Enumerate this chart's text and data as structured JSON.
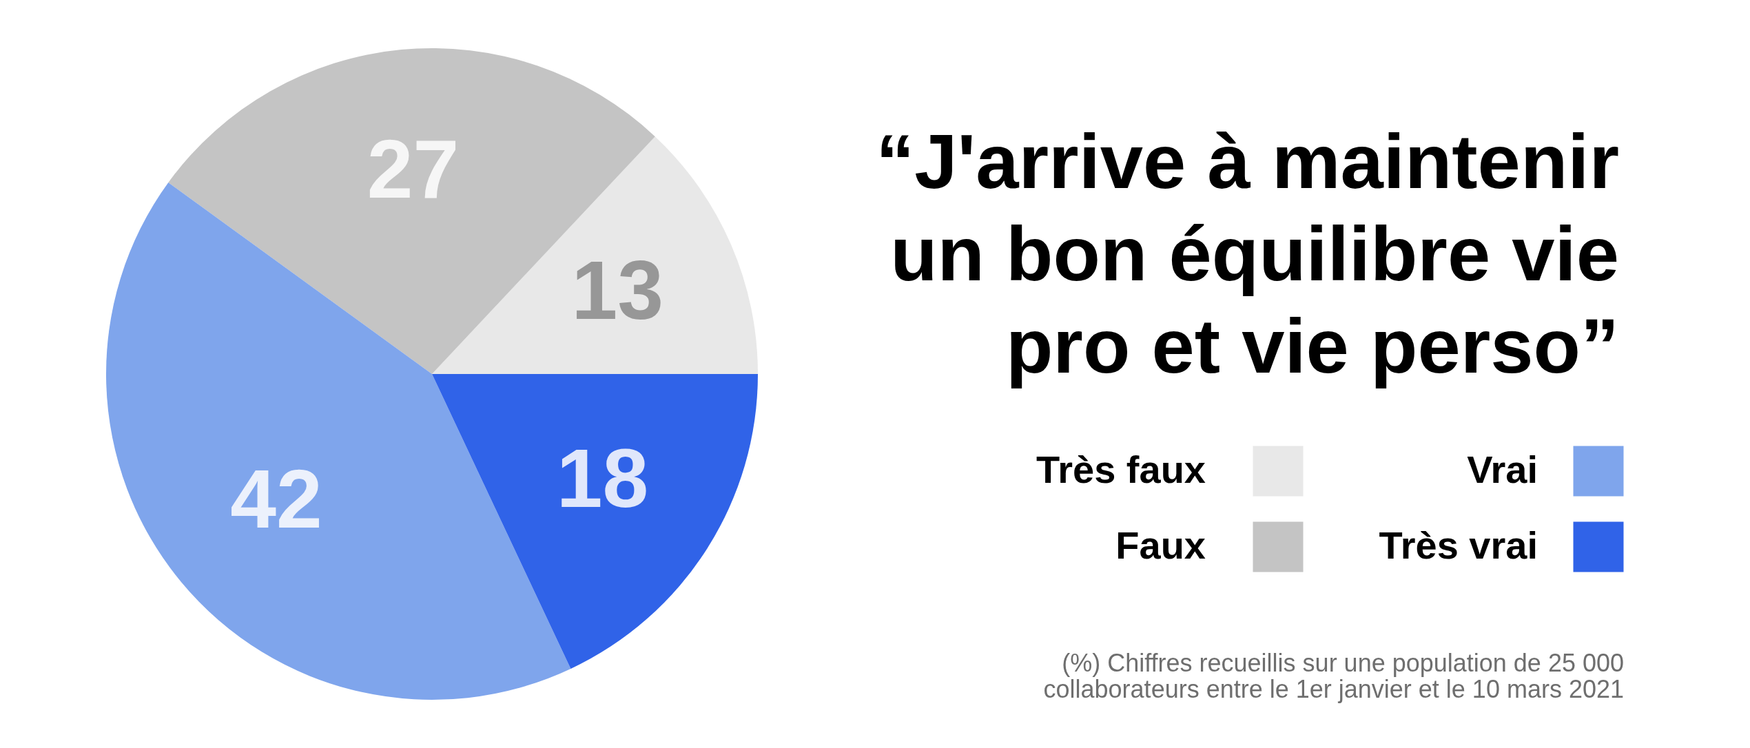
{
  "chart_data": {
    "type": "pie",
    "title": "“J'arrive à maintenir\nun bon équilibre vie\npro et vie perso”",
    "categories": [
      "Très faux",
      "Faux",
      "Vrai",
      "Très vrai"
    ],
    "values": [
      13,
      27,
      42,
      18
    ],
    "colors": [
      "#e8e8e8",
      "#c4c4c4",
      "#7fa5ec",
      "#3063e8"
    ],
    "data_labels": true,
    "legend": "right",
    "annotations": [
      "(%) Chiffres recueillis sur une population de 25 000\ncollaborateurs entre le 1er janvier et le 10 mars 2021"
    ]
  }
}
